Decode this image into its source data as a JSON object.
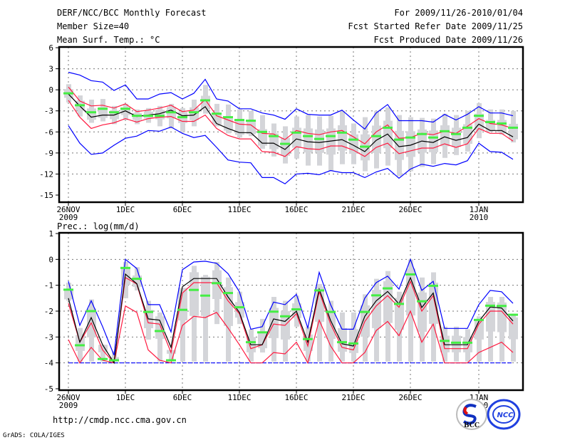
{
  "header": {
    "title": "DERF/NCC/BCC Monthly Forecast",
    "member_size": "Member Size=40",
    "period": "For 2009/11/26-2010/01/04",
    "fcst_started": "Fcst Started Refer Date 2009/11/25",
    "fcst_produced": "Fcst Produced Date 2009/11/26"
  },
  "footer": {
    "url": "http://cmdp.ncc.cma.gov.cn",
    "credit": "GrADS: COLA/IGES",
    "logo_bcc": "BCC",
    "logo_ncc": "NCC"
  },
  "colors": {
    "mean": "#000000",
    "red": "#ff1a40",
    "blue": "#0000ff",
    "green": "#44ee44",
    "box": "#d4d5d9"
  },
  "chart_data": [
    {
      "type": "line",
      "title": "Mean Surf. Temp.: °C",
      "xlabel": "",
      "ylabel": "",
      "ylim": [
        -15,
        6
      ],
      "yticks": [
        6,
        3,
        0,
        -3,
        -6,
        -9,
        -12,
        -15
      ],
      "ytick_labels": [
        "6",
        "3",
        "0",
        "-3",
        "-6",
        "-9",
        "-12",
        "-15"
      ],
      "xticks": [
        {
          "day": 0,
          "label": "26NOV",
          "sub": "2009"
        },
        {
          "day": 5,
          "label": "1DEC"
        },
        {
          "day": 10,
          "label": "6DEC"
        },
        {
          "day": 15,
          "label": "11DEC"
        },
        {
          "day": 20,
          "label": "16DEC"
        },
        {
          "day": 25,
          "label": "21DEC"
        },
        {
          "day": 30,
          "label": "26DEC"
        },
        {
          "day": 36,
          "label": "1JAN",
          "sub": "2010"
        }
      ],
      "grid": true,
      "n_days": 40,
      "series": [
        {
          "name": "ensemble-mean",
          "color": "mean",
          "values": [
            -0.6,
            -2.3,
            -3.9,
            -3.6,
            -3.6,
            -3.0,
            -3.8,
            -3.6,
            -3.4,
            -2.9,
            -3.7,
            -3.6,
            -2.4,
            -4.8,
            -5.5,
            -6.1,
            -6.1,
            -7.6,
            -7.6,
            -8.5,
            -7.0,
            -7.4,
            -7.5,
            -7.3,
            -7.1,
            -7.9,
            -8.8,
            -7.2,
            -6.3,
            -8.1,
            -7.9,
            -7.3,
            -7.5,
            -6.7,
            -7.2,
            -6.8,
            -4.9,
            -5.8,
            -5.8,
            -6.7
          ]
        },
        {
          "name": "red-upper",
          "color": "red",
          "values": [
            0.4,
            -1.6,
            -2.3,
            -2.2,
            -2.6,
            -2.0,
            -3.1,
            -2.9,
            -2.6,
            -2.2,
            -3.1,
            -2.9,
            -1.4,
            -3.7,
            -4.3,
            -4.9,
            -5.0,
            -6.2,
            -6.3,
            -7.1,
            -5.8,
            -6.2,
            -6.4,
            -6.0,
            -5.8,
            -6.7,
            -7.7,
            -6.0,
            -5.0,
            -6.9,
            -6.8,
            -6.2,
            -6.4,
            -5.9,
            -6.2,
            -5.2,
            -4.1,
            -4.8,
            -5.0,
            -5.5
          ]
        },
        {
          "name": "red-lower",
          "color": "red",
          "values": [
            -1.5,
            -3.9,
            -5.5,
            -5.0,
            -4.7,
            -4.1,
            -4.6,
            -4.1,
            -3.9,
            -3.8,
            -4.5,
            -4.5,
            -3.6,
            -5.5,
            -6.5,
            -7.0,
            -7.0,
            -8.8,
            -8.9,
            -9.5,
            -8.1,
            -8.4,
            -8.5,
            -8.0,
            -8.0,
            -8.6,
            -9.5,
            -8.2,
            -7.6,
            -9.1,
            -8.7,
            -8.3,
            -8.3,
            -7.7,
            -8.2,
            -7.7,
            -5.5,
            -6.2,
            -6.2,
            -7.3
          ]
        },
        {
          "name": "blue-upper",
          "color": "blue",
          "values": [
            2.5,
            2.1,
            1.3,
            1.1,
            -0.1,
            0.7,
            -1.3,
            -1.3,
            -0.6,
            -0.4,
            -1.3,
            -0.5,
            1.5,
            -1.3,
            -1.6,
            -2.7,
            -2.7,
            -3.3,
            -3.6,
            -4.2,
            -2.7,
            -3.5,
            -3.6,
            -3.6,
            -2.9,
            -4.3,
            -5.6,
            -3.3,
            -2.1,
            -4.4,
            -4.4,
            -4.4,
            -4.6,
            -3.5,
            -4.3,
            -3.5,
            -2.4,
            -3.3,
            -3.3,
            -3.7
          ]
        },
        {
          "name": "blue-lower",
          "color": "blue",
          "values": [
            -5.1,
            -7.6,
            -9.2,
            -9.0,
            -7.9,
            -6.9,
            -6.6,
            -5.8,
            -5.9,
            -5.3,
            -6.2,
            -6.8,
            -6.5,
            -8.2,
            -10.0,
            -10.3,
            -10.4,
            -12.5,
            -12.5,
            -13.4,
            -12.0,
            -11.9,
            -12.1,
            -11.5,
            -11.8,
            -11.8,
            -12.5,
            -11.7,
            -11.2,
            -12.6,
            -11.3,
            -10.6,
            -10.9,
            -10.5,
            -10.7,
            -10.1,
            -7.6,
            -8.8,
            -8.9,
            -9.9
          ]
        }
      ],
      "observed": [
        -0.5,
        -2.2,
        -3.2,
        -2.7,
        -3.2,
        -2.7,
        -3.7,
        -3.7,
        -3.7,
        -3.2,
        -3.9,
        -3.2,
        -1.5,
        -3.4,
        -3.9,
        -4.3,
        -4.4,
        -6.0,
        -6.6,
        -7.7,
        -6.1,
        -6.6,
        -7.0,
        -6.6,
        -6.1,
        -7.1,
        -8.1,
        -6.6,
        -5.4,
        -7.1,
        -6.8,
        -6.3,
        -6.8,
        -5.9,
        -6.3,
        -5.4,
        -3.7,
        -4.6,
        -4.8,
        -5.4
      ],
      "box_high": [
        0.8,
        -0.8,
        -1.4,
        -1.3,
        -2.3,
        -2.0,
        -2.8,
        -2.6,
        -2.3,
        -2.0,
        -2.6,
        -1.4,
        0.7,
        -2.0,
        -2.1,
        -2.8,
        -3.0,
        -3.6,
        -4.8,
        -5.2,
        -3.8,
        -3.6,
        -3.8,
        -3.7,
        -3.0,
        -4.8,
        -3.9,
        -3.0,
        -2.5,
        -3.6,
        -3.9,
        -4.0,
        -4.1,
        -3.4,
        -3.6,
        -3.0,
        -1.9,
        -2.8,
        -2.8,
        -3.0
      ],
      "box_low": [
        -1.8,
        -3.8,
        -4.7,
        -4.5,
        -4.9,
        -4.3,
        -4.9,
        -4.7,
        -5.2,
        -5.5,
        -6.0,
        -5.2,
        -3.4,
        -5.2,
        -6.2,
        -6.8,
        -6.6,
        -8.4,
        -9.5,
        -10.5,
        -9.8,
        -10.8,
        -10.8,
        -11.6,
        -10.6,
        -10.6,
        -11.6,
        -11.2,
        -10.8,
        -12.3,
        -11.6,
        -11.0,
        -10.6,
        -9.7,
        -9.3,
        -8.8,
        -6.9,
        -6.0,
        -6.4,
        -7.5
      ]
    },
    {
      "type": "line",
      "title": "Prec.: log(mm/d)",
      "xlabel": "",
      "ylabel": "",
      "ylim": [
        -5,
        1
      ],
      "yticks": [
        1,
        0,
        -1,
        -2,
        -3,
        -4,
        -5
      ],
      "ytick_labels": [
        "1",
        "0",
        "-1",
        "-2",
        "-3",
        "-4",
        "-5"
      ],
      "xticks": [
        {
          "day": 0,
          "label": "26NOV",
          "sub": "2009"
        },
        {
          "day": 5,
          "label": "1DEC"
        },
        {
          "day": 10,
          "label": "6DEC"
        },
        {
          "day": 15,
          "label": "11DEC"
        },
        {
          "day": 20,
          "label": "16DEC"
        },
        {
          "day": 25,
          "label": "21DEC"
        },
        {
          "day": 30,
          "label": "26DEC"
        },
        {
          "day": 36,
          "label": "1JAN",
          "sub": "2010"
        }
      ],
      "grid": true,
      "n_days": 40,
      "series": [
        {
          "name": "ensemble-mean",
          "color": "mean",
          "values": [
            -1.5,
            -3.2,
            -2.25,
            -3.3,
            -4.0,
            -0.57,
            -0.94,
            -2.3,
            -2.35,
            -3.4,
            -1.06,
            -0.74,
            -0.74,
            -0.74,
            -1.45,
            -2.05,
            -3.3,
            -3.3,
            -2.3,
            -2.4,
            -2.0,
            -3.2,
            -1.15,
            -2.36,
            -3.26,
            -3.35,
            -2.2,
            -1.6,
            -1.24,
            -1.72,
            -0.71,
            -1.86,
            -1.3,
            -3.3,
            -3.3,
            -3.3,
            -2.4,
            -1.84,
            -1.88,
            -2.38
          ]
        },
        {
          "name": "red-upper",
          "color": "red",
          "values": [
            -1.7,
            -3.2,
            -2.45,
            -3.5,
            -4.0,
            -0.7,
            -0.95,
            -2.45,
            -2.5,
            -3.6,
            -1.3,
            -0.9,
            -0.9,
            -0.9,
            -1.6,
            -2.1,
            -3.45,
            -3.3,
            -2.5,
            -2.55,
            -2.1,
            -3.35,
            -1.25,
            -2.5,
            -3.4,
            -3.5,
            -2.4,
            -1.8,
            -1.4,
            -1.85,
            -0.85,
            -2.0,
            -1.4,
            -3.45,
            -3.45,
            -3.45,
            -2.5,
            -2.0,
            -2.0,
            -2.5
          ]
        },
        {
          "name": "red-lower",
          "color": "red",
          "values": [
            -3.1,
            -4.0,
            -3.4,
            -3.9,
            -4.0,
            -1.8,
            -2.05,
            -3.5,
            -3.9,
            -4.0,
            -2.55,
            -2.2,
            -2.25,
            -2.05,
            -2.65,
            -3.3,
            -4.0,
            -4.0,
            -3.6,
            -3.65,
            -3.2,
            -4.0,
            -2.35,
            -3.35,
            -4.0,
            -4.0,
            -3.6,
            -2.75,
            -2.4,
            -2.95,
            -2.0,
            -3.2,
            -2.5,
            -4.0,
            -4.0,
            -4.0,
            -3.6,
            -3.4,
            -3.2,
            -3.6
          ]
        },
        {
          "name": "blue-upper",
          "color": "blue",
          "values": [
            -0.85,
            -2.55,
            -1.6,
            -2.6,
            -3.7,
            0.0,
            -0.35,
            -1.75,
            -1.75,
            -2.8,
            -0.4,
            -0.1,
            -0.07,
            -0.15,
            -0.55,
            -1.25,
            -2.7,
            -2.6,
            -1.65,
            -1.75,
            -1.35,
            -2.65,
            -0.5,
            -1.75,
            -2.7,
            -2.7,
            -1.5,
            -0.9,
            -0.65,
            -1.15,
            0.0,
            -1.2,
            -0.85,
            -2.67,
            -2.67,
            -2.67,
            -1.75,
            -1.2,
            -1.25,
            -1.7
          ]
        },
        {
          "name": "blue-lower",
          "color": "blue",
          "values": [
            -4,
            -4,
            -4,
            -4,
            -4,
            -4,
            -4,
            -4,
            -4,
            -4,
            -4,
            -4,
            -4,
            -4,
            -4,
            -4,
            -4,
            -4,
            -4,
            -4,
            -4,
            -4,
            -4,
            -4,
            -4,
            -4,
            -4,
            -4,
            -4,
            -4,
            -4,
            -4,
            -4,
            -4,
            -4,
            -4,
            -4,
            -4,
            -4,
            -4
          ]
        }
      ],
      "observed": [
        -1.17,
        -3.32,
        -2.0,
        -3.85,
        -3.9,
        -0.33,
        -0.75,
        -2.03,
        -2.77,
        -3.9,
        -1.95,
        -1.18,
        -1.4,
        -0.92,
        -1.3,
        -1.85,
        -3.2,
        -2.82,
        -2.02,
        -2.2,
        -1.93,
        -3.08,
        -1.2,
        -2.03,
        -3.2,
        -3.25,
        -2.03,
        -1.39,
        -1.12,
        -1.72,
        -0.58,
        -1.62,
        -1.02,
        -3.15,
        -3.22,
        -3.22,
        -2.34,
        -1.79,
        -1.8,
        -2.14
      ],
      "box_high": [
        -0.9,
        -2.65,
        -1.55,
        -3.3,
        -3.55,
        -0.1,
        -0.3,
        -1.6,
        -2.05,
        -3.5,
        -1.1,
        -0.25,
        -0.6,
        -0.1,
        -0.7,
        -1.25,
        -2.7,
        -2.3,
        -1.45,
        -1.6,
        -1.4,
        -2.6,
        -0.95,
        -1.6,
        -2.05,
        -2.05,
        -1.35,
        -0.75,
        -0.45,
        -1.25,
        0.0,
        -0.7,
        -0.5,
        -2.6,
        -2.6,
        -2.7,
        -2.2,
        -1.45,
        -1.45,
        -2.1
      ],
      "box_low": [
        -1.6,
        -3.95,
        -3.95,
        -3.95,
        -3.95,
        -1.5,
        -1.2,
        -3.1,
        -3.95,
        -3.95,
        -3.95,
        -3.95,
        -3.95,
        -2.5,
        -3.95,
        -2.5,
        -3.95,
        -3.6,
        -3.95,
        -3.95,
        -2.6,
        -3.95,
        -3.95,
        -3.95,
        -3.95,
        -3.95,
        -3.95,
        -3.95,
        -3.95,
        -3.95,
        -3.95,
        -3.95,
        -3.95,
        -3.95,
        -3.95,
        -3.95,
        -3.95,
        -3.95,
        -3.95,
        -3.95
      ]
    }
  ]
}
